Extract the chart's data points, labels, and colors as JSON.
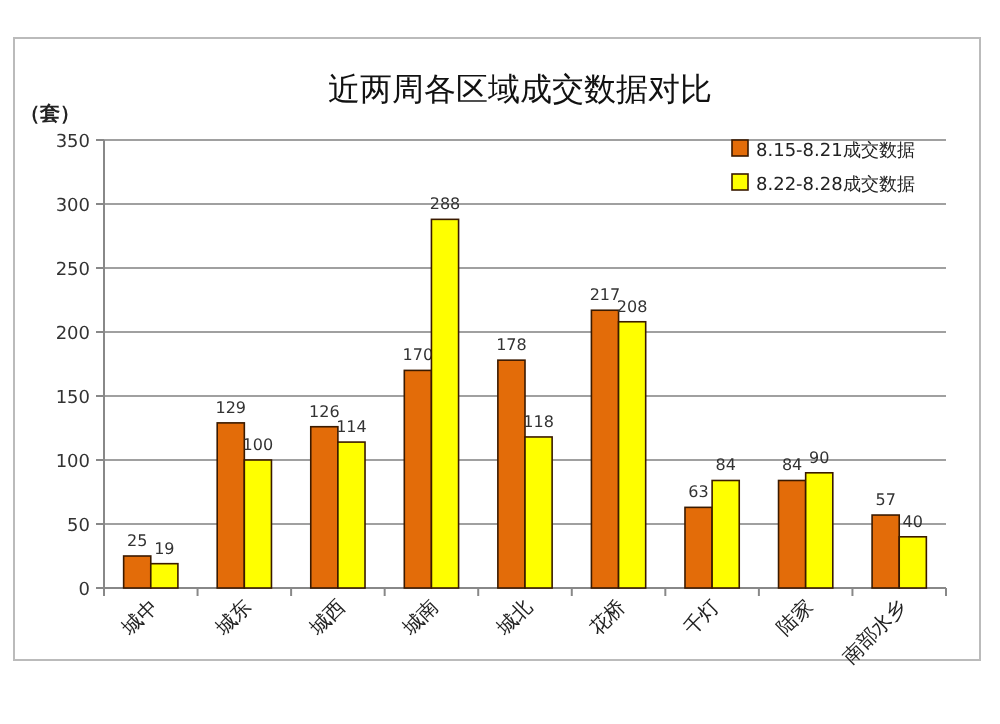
{
  "chart_data": {
    "type": "bar",
    "title": "近两周各区域成交数据对比",
    "ylabel": "（套）",
    "categories": [
      "城中",
      "城东",
      "城西",
      "城南",
      "城北",
      "花桥",
      "千灯",
      "陆家",
      "南部水乡"
    ],
    "series": [
      {
        "name": "8.15-8.21成交数据",
        "color": "#e36c09",
        "values": [
          25,
          129,
          126,
          170,
          178,
          217,
          63,
          84,
          57
        ]
      },
      {
        "name": "8.22-8.28成交数据",
        "color": "#ffff00",
        "values": [
          19,
          100,
          114,
          288,
          118,
          208,
          84,
          90,
          40
        ]
      }
    ],
    "ylim": [
      0,
      350
    ],
    "yticks": [
      0,
      50,
      100,
      150,
      200,
      250,
      300,
      350
    ],
    "grid": "y",
    "legend": "top right",
    "data_labels": true
  }
}
